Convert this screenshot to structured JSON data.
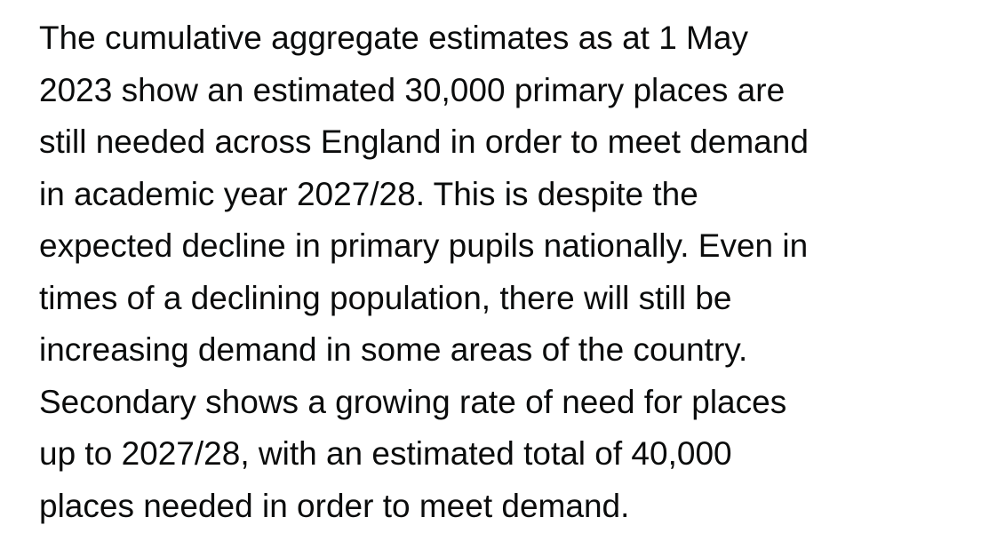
{
  "content": {
    "lines": [
      "The cumulative aggregate estimates as at 1 May",
      "2023 show an estimated 30,000 primary places are",
      "still needed across England in order to meet demand",
      "in academic year 2027/28. This is despite the",
      "expected decline in primary pupils nationally. Even in",
      "times of a declining population, there will still be",
      "increasing demand in some areas of the country.",
      "Secondary shows a growing rate of need for places",
      "up to 2027/28, with an estimated total of 40,000",
      "places needed in order to meet demand."
    ]
  },
  "colors": {
    "text": "#0b0c0c",
    "background": "#ffffff"
  }
}
